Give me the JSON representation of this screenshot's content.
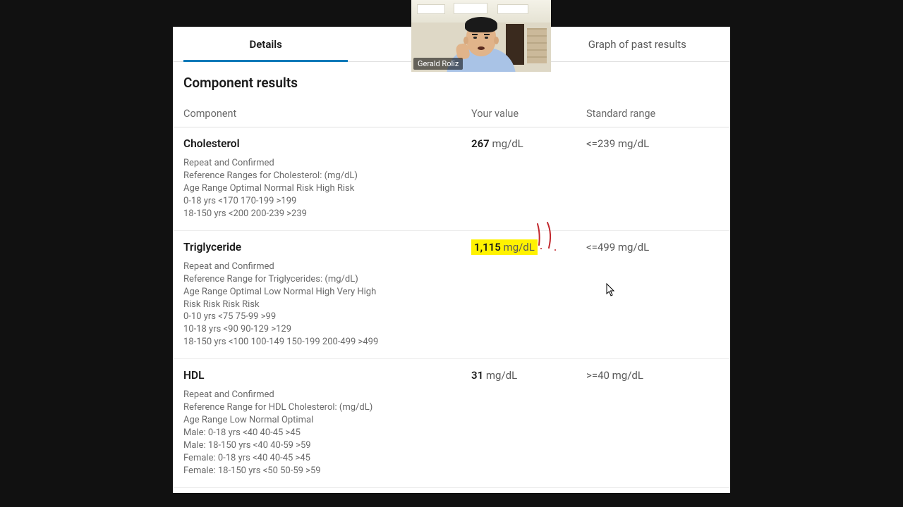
{
  "tabs": {
    "details": "Details",
    "center": "",
    "graph": "Graph of past results",
    "active": "details"
  },
  "section_title": "Component results",
  "columns": {
    "component": "Component",
    "value": "Your value",
    "range": "Standard range"
  },
  "rows": [
    {
      "name": "Cholesterol",
      "value_num": "267",
      "value_unit": "mg/dL",
      "range_text": "<=239 mg/dL",
      "highlight": false,
      "annotate": false,
      "notes": [
        "Repeat and Confirmed",
        "Reference Ranges for Cholesterol: (mg/dL)",
        "Age Range Optimal Normal Risk High Risk",
        "0-18 yrs <170 170-199 >199",
        "18-150 yrs <200 200-239 >239"
      ]
    },
    {
      "name": "Triglyceride",
      "value_num": "1,115",
      "value_unit": "mg/dL",
      "range_text": "<=499 mg/dL",
      "highlight": true,
      "annotate": true,
      "notes": [
        "Repeat and Confirmed",
        "Reference Range for Triglycerides: (mg/dL)",
        "Age Range Optimal Low Normal High Very High",
        "Risk Risk Risk Risk",
        "0-10 yrs <75 75-99 >99",
        "10-18 yrs <90 90-129 >129",
        "18-150 yrs <100 100-149 150-199 200-499 >499"
      ]
    },
    {
      "name": "HDL",
      "value_num": "31",
      "value_unit": "mg/dL",
      "range_text": ">=40 mg/dL",
      "highlight": false,
      "annotate": false,
      "notes": [
        "Repeat and Confirmed",
        "Reference Range for HDL Cholesterol: (mg/dL)",
        "Age Range Low Normal Optimal",
        "Male: 0-18 yrs <40 40-45 >45",
        "Male: 18-150 yrs <40 40-59 >59",
        "Female: 0-18 yrs <40 40-45 >45",
        "Female: 18-150 yrs <50 50-59 >59"
      ]
    }
  ],
  "video_overlay": {
    "name_label": "Gerald Roliz"
  },
  "annotation": {
    "stroke": "#c1272d",
    "width": 2
  },
  "colors": {
    "page_bg": "#111111",
    "panel_bg": "#ffffff",
    "tab_underline": "#0079b8",
    "highlight_bg": "#fff200",
    "text_primary": "#1a1a1a",
    "text_muted": "#6a6a6a",
    "divider": "#e0e0e0"
  }
}
